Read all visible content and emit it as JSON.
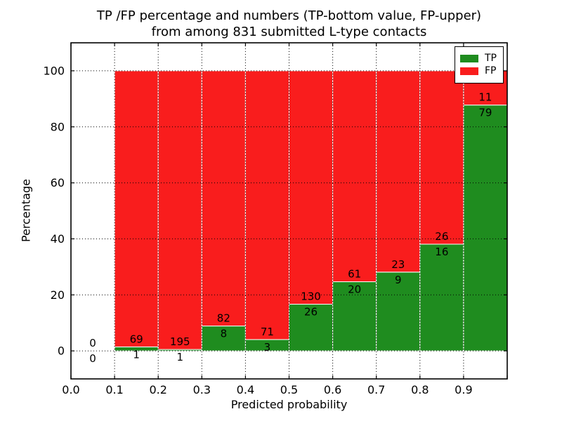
{
  "title": {
    "line1": "TP /FP percentage and numbers (TP-bottom value, FP-upper)",
    "line2": "from among 831 submitted L-type contacts"
  },
  "axes": {
    "xlabel": "Predicted probability",
    "ylabel": "Percentage"
  },
  "legend": {
    "tp_label": "TP",
    "fp_label": "FP"
  },
  "chart_data": {
    "type": "bar",
    "stacked": true,
    "title": "TP /FP percentage and numbers (TP-bottom value, FP-upper) from among 831 submitted L-type contacts",
    "xlabel": "Predicted probability",
    "ylabel": "Percentage",
    "xlim": [
      0.0,
      1.0
    ],
    "ylim": [
      -10,
      110
    ],
    "x_tick_labels": [
      "0.0",
      "0.1",
      "0.2",
      "0.3",
      "0.4",
      "0.5",
      "0.6",
      "0.7",
      "0.8",
      "0.9"
    ],
    "y_tick_values": [
      0,
      20,
      40,
      60,
      80,
      100
    ],
    "grid": "dotted black, drawn over bars",
    "bar_width": 0.1,
    "bar_edge_color": "#ffffff",
    "colors": {
      "tp": "#1f8c1f",
      "fp": "#f91d1d"
    },
    "legend": {
      "position": "upper right",
      "entries": [
        {
          "label": "TP",
          "color": "#1f8c1f"
        },
        {
          "label": "FP",
          "color": "#f91d1d"
        }
      ]
    },
    "note": "Each bar spans a 0.1 predicted-probability bin, normalized to 100%: green TP share on the bottom, red FP share stacked above. Count labels: FP count printed above the TP/FP boundary, TP count below it.",
    "bins": [
      {
        "range": [
          0.0,
          0.1
        ],
        "tp_count": 0,
        "fp_count": 0,
        "tp_pct": 0.0,
        "fp_pct": 0.0
      },
      {
        "range": [
          0.1,
          0.2
        ],
        "tp_count": 1,
        "fp_count": 69,
        "tp_pct": 1.43,
        "fp_pct": 98.57
      },
      {
        "range": [
          0.2,
          0.3
        ],
        "tp_count": 1,
        "fp_count": 195,
        "tp_pct": 0.51,
        "fp_pct": 99.49
      },
      {
        "range": [
          0.3,
          0.4
        ],
        "tp_count": 8,
        "fp_count": 82,
        "tp_pct": 8.89,
        "fp_pct": 91.11
      },
      {
        "range": [
          0.4,
          0.5
        ],
        "tp_count": 3,
        "fp_count": 71,
        "tp_pct": 4.05,
        "fp_pct": 95.95
      },
      {
        "range": [
          0.5,
          0.6
        ],
        "tp_count": 26,
        "fp_count": 130,
        "tp_pct": 16.67,
        "fp_pct": 83.33
      },
      {
        "range": [
          0.6,
          0.7
        ],
        "tp_count": 20,
        "fp_count": 61,
        "tp_pct": 24.69,
        "fp_pct": 75.31
      },
      {
        "range": [
          0.7,
          0.8
        ],
        "tp_count": 9,
        "fp_count": 23,
        "tp_pct": 28.13,
        "fp_pct": 71.87
      },
      {
        "range": [
          0.8,
          0.9
        ],
        "tp_count": 16,
        "fp_count": 26,
        "tp_pct": 38.1,
        "fp_pct": 61.9
      },
      {
        "range": [
          0.9,
          1.0
        ],
        "tp_count": 79,
        "fp_count": 11,
        "tp_pct": 87.78,
        "fp_pct": 12.22
      }
    ]
  }
}
